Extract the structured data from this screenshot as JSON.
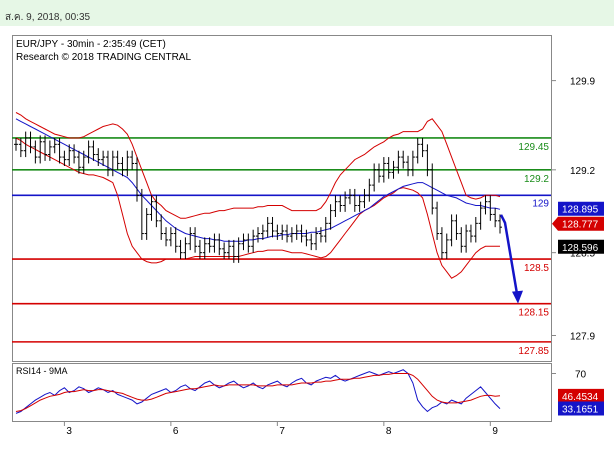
{
  "header": {
    "date": "ส.ค. 9, 2018, 00:35"
  },
  "chart_data": [
    {
      "type": "line",
      "title": "EUR/JPY - 30min - 2:35:49 (CET)",
      "subtitle": "Research © 2018 TRADING CENTRAL",
      "ylim": [
        127.7,
        130.25
      ],
      "y_ticks": [
        "129.9",
        "129.2",
        "128.5",
        "127.9"
      ],
      "y_tick_values": [
        129.9,
        129.2,
        128.55,
        127.9
      ],
      "x_tick_labels": [
        "3",
        "6",
        "7",
        "8",
        "9"
      ],
      "x_tick_index": [
        10,
        32,
        54,
        76,
        98
      ],
      "levels": [
        {
          "label": "129.45",
          "value": 129.45,
          "color": "#1a8c1a",
          "kind": "resistance"
        },
        {
          "label": "129.2",
          "value": 129.2,
          "color": "#1a8c1a",
          "kind": "resistance"
        },
        {
          "label": "129",
          "value": 129.0,
          "color": "#1414c8",
          "kind": "pivot"
        },
        {
          "label": "128.5",
          "value": 128.5,
          "color": "#d40000",
          "kind": "support"
        },
        {
          "label": "128.15",
          "value": 128.15,
          "color": "#d40000",
          "kind": "support"
        },
        {
          "label": "127.85",
          "value": 127.85,
          "color": "#d40000",
          "kind": "support"
        }
      ],
      "price_tags": [
        {
          "label": "128.895",
          "value": 128.895,
          "bg": "#1414c8",
          "fg": "#ffffff"
        },
        {
          "label": "128.777",
          "value": 128.777,
          "bg": "#d40000",
          "fg": "#ffffff"
        },
        {
          "label": "128.596",
          "value": 128.596,
          "bg": "#000000",
          "fg": "#ffffff"
        }
      ],
      "close": [
        129.4,
        129.35,
        129.45,
        129.38,
        129.3,
        129.42,
        129.32,
        129.38,
        129.4,
        129.3,
        129.28,
        129.35,
        129.3,
        129.22,
        129.3,
        129.38,
        129.32,
        129.28,
        129.3,
        129.2,
        129.3,
        129.25,
        129.2,
        129.3,
        129.25,
        129.0,
        128.7,
        128.85,
        128.95,
        128.8,
        128.7,
        128.65,
        128.7,
        128.6,
        128.55,
        128.62,
        128.7,
        128.6,
        128.55,
        128.62,
        128.6,
        128.65,
        128.58,
        128.55,
        128.6,
        128.52,
        128.62,
        128.65,
        128.6,
        128.68,
        128.7,
        128.72,
        128.78,
        128.72,
        128.7,
        128.72,
        128.68,
        128.7,
        128.72,
        128.68,
        128.65,
        128.62,
        128.7,
        128.68,
        128.78,
        128.88,
        128.95,
        128.92,
        128.98,
        129.0,
        128.92,
        128.95,
        129.0,
        129.08,
        129.2,
        129.15,
        129.25,
        129.18,
        129.22,
        129.3,
        129.26,
        129.2,
        129.3,
        129.4,
        129.35,
        129.2,
        128.9,
        128.7,
        128.55,
        128.65,
        128.8,
        128.7,
        128.6,
        128.72,
        128.68,
        128.78,
        128.9,
        128.95,
        128.85,
        128.8,
        128.75
      ],
      "ma": [
        129.6,
        129.58,
        129.56,
        129.54,
        129.52,
        129.5,
        129.48,
        129.46,
        129.44,
        129.42,
        129.4,
        129.38,
        129.36,
        129.34,
        129.32,
        129.3,
        129.28,
        129.26,
        129.24,
        129.22,
        129.2,
        129.18,
        129.16,
        129.14,
        129.1,
        129.05,
        129.0,
        128.96,
        128.92,
        128.88,
        128.84,
        128.8,
        128.77,
        128.74,
        128.72,
        128.7,
        128.69,
        128.68,
        128.67,
        128.66,
        128.66,
        128.65,
        128.65,
        128.64,
        128.64,
        128.64,
        128.64,
        128.64,
        128.65,
        128.65,
        128.66,
        128.66,
        128.67,
        128.68,
        128.68,
        128.69,
        128.69,
        128.7,
        128.7,
        128.7,
        128.7,
        128.71,
        128.71,
        128.72,
        128.73,
        128.74,
        128.76,
        128.78,
        128.8,
        128.82,
        128.84,
        128.86,
        128.88,
        128.9,
        128.93,
        128.96,
        128.99,
        129.01,
        129.03,
        129.05,
        129.07,
        129.08,
        129.09,
        129.1,
        129.1,
        129.08,
        129.06,
        129.04,
        129.02,
        129.0,
        128.99,
        128.98,
        128.96,
        128.94,
        128.93,
        128.92,
        128.92,
        128.91,
        128.9,
        128.9,
        128.89
      ],
      "bb_upper": [
        129.65,
        129.63,
        129.6,
        129.58,
        129.56,
        129.54,
        129.52,
        129.5,
        129.48,
        129.47,
        129.46,
        129.45,
        129.45,
        129.45,
        129.46,
        129.48,
        129.5,
        129.52,
        129.54,
        129.55,
        129.56,
        129.55,
        129.52,
        129.48,
        129.4,
        129.3,
        129.2,
        129.1,
        129.0,
        128.95,
        128.92,
        128.88,
        128.86,
        128.84,
        128.82,
        128.82,
        128.83,
        128.84,
        128.85,
        128.86,
        128.86,
        128.87,
        128.88,
        128.88,
        128.89,
        128.9,
        128.9,
        128.9,
        128.9,
        128.9,
        128.91,
        128.91,
        128.92,
        128.92,
        128.92,
        128.92,
        128.9,
        128.88,
        128.88,
        128.88,
        128.88,
        128.88,
        128.88,
        128.9,
        128.95,
        129.02,
        129.1,
        129.16,
        129.2,
        129.24,
        129.28,
        129.3,
        129.32,
        129.35,
        129.38,
        129.4,
        129.42,
        129.45,
        129.47,
        129.48,
        129.5,
        129.5,
        129.5,
        129.5,
        129.52,
        129.58,
        129.6,
        129.55,
        129.5,
        129.4,
        129.3,
        129.2,
        129.1,
        129.0,
        128.98,
        128.97,
        128.98,
        129.0,
        129.0,
        129.0,
        128.99
      ],
      "bb_lower": [
        129.45,
        129.43,
        129.4,
        129.38,
        129.36,
        129.34,
        129.32,
        129.3,
        129.28,
        129.26,
        129.24,
        129.22,
        129.2,
        129.18,
        129.17,
        129.16,
        129.16,
        129.15,
        129.14,
        129.12,
        129.1,
        129.0,
        128.85,
        128.7,
        128.6,
        128.55,
        128.5,
        128.48,
        128.47,
        128.47,
        128.48,
        128.5,
        128.5,
        128.5,
        128.5,
        128.5,
        128.51,
        128.52,
        128.52,
        128.52,
        128.52,
        128.52,
        128.52,
        128.52,
        128.52,
        128.52,
        128.52,
        128.53,
        128.54,
        128.55,
        128.56,
        128.56,
        128.57,
        128.57,
        128.57,
        128.57,
        128.56,
        128.55,
        128.55,
        128.55,
        128.54,
        128.53,
        128.52,
        128.51,
        128.52,
        128.55,
        128.6,
        128.65,
        128.7,
        128.75,
        128.8,
        128.85,
        128.88,
        128.9,
        128.92,
        128.95,
        128.98,
        129.0,
        129.02,
        129.05,
        129.06,
        129.05,
        129.04,
        129.02,
        128.98,
        128.85,
        128.7,
        128.55,
        128.45,
        128.4,
        128.35,
        128.37,
        128.4,
        128.45,
        128.5,
        128.55,
        128.58,
        128.6,
        128.6,
        128.6,
        128.6
      ],
      "forecast_arrow": {
        "from": 128.8,
        "to": 128.15,
        "color": "#1414c8"
      }
    },
    {
      "type": "line",
      "title": "RSI14 - 9MA",
      "y_ticks": [
        "70"
      ],
      "y_tick_values": [
        70
      ],
      "ylim": [
        20,
        80
      ],
      "value_tags": [
        {
          "label": "46.4534",
          "value": 46.4534,
          "bg": "#d40000",
          "fg": "#ffffff"
        },
        {
          "label": "33.1651",
          "value": 33.1651,
          "bg": "#1414c8",
          "fg": "#ffffff"
        }
      ],
      "series": [
        {
          "name": "RSI14",
          "color": "#1414c8",
          "values": [
            28,
            30,
            34,
            38,
            42,
            45,
            48,
            50,
            47,
            52,
            55,
            50,
            52,
            56,
            54,
            50,
            52,
            55,
            53,
            50,
            52,
            48,
            46,
            44,
            42,
            38,
            40,
            44,
            48,
            50,
            52,
            54,
            50,
            52,
            56,
            58,
            54,
            52,
            56,
            60,
            62,
            58,
            55,
            57,
            60,
            62,
            58,
            55,
            57,
            60,
            56,
            54,
            58,
            60,
            62,
            58,
            56,
            60,
            63,
            65,
            60,
            58,
            62,
            64,
            66,
            65,
            68,
            64,
            62,
            64,
            66,
            68,
            70,
            72,
            70,
            68,
            70,
            72,
            70,
            72,
            74,
            70,
            60,
            42,
            35,
            30,
            34,
            36,
            40,
            38,
            42,
            40,
            38,
            44,
            48,
            52,
            56,
            50,
            44,
            38,
            33
          ]
        },
        {
          "name": "9MA",
          "color": "#d40000",
          "values": [
            30,
            31,
            33,
            36,
            39,
            42,
            44,
            46,
            47,
            48,
            50,
            51,
            51,
            52,
            53,
            52,
            52,
            53,
            53,
            52,
            51,
            50,
            49,
            47,
            45,
            43,
            42,
            42,
            43,
            45,
            47,
            49,
            50,
            51,
            52,
            53,
            54,
            54,
            55,
            56,
            57,
            58,
            57,
            57,
            58,
            58,
            58,
            58,
            58,
            58,
            57,
            57,
            57,
            57,
            58,
            58,
            58,
            58,
            59,
            60,
            60,
            60,
            61,
            61,
            62,
            62,
            63,
            64,
            64,
            64,
            65,
            65,
            66,
            67,
            68,
            68,
            69,
            69,
            70,
            70,
            70,
            70,
            68,
            64,
            58,
            52,
            46,
            42,
            40,
            39,
            39,
            39,
            40,
            41,
            42,
            44,
            46,
            47,
            47,
            46,
            46.5
          ]
        }
      ]
    }
  ]
}
